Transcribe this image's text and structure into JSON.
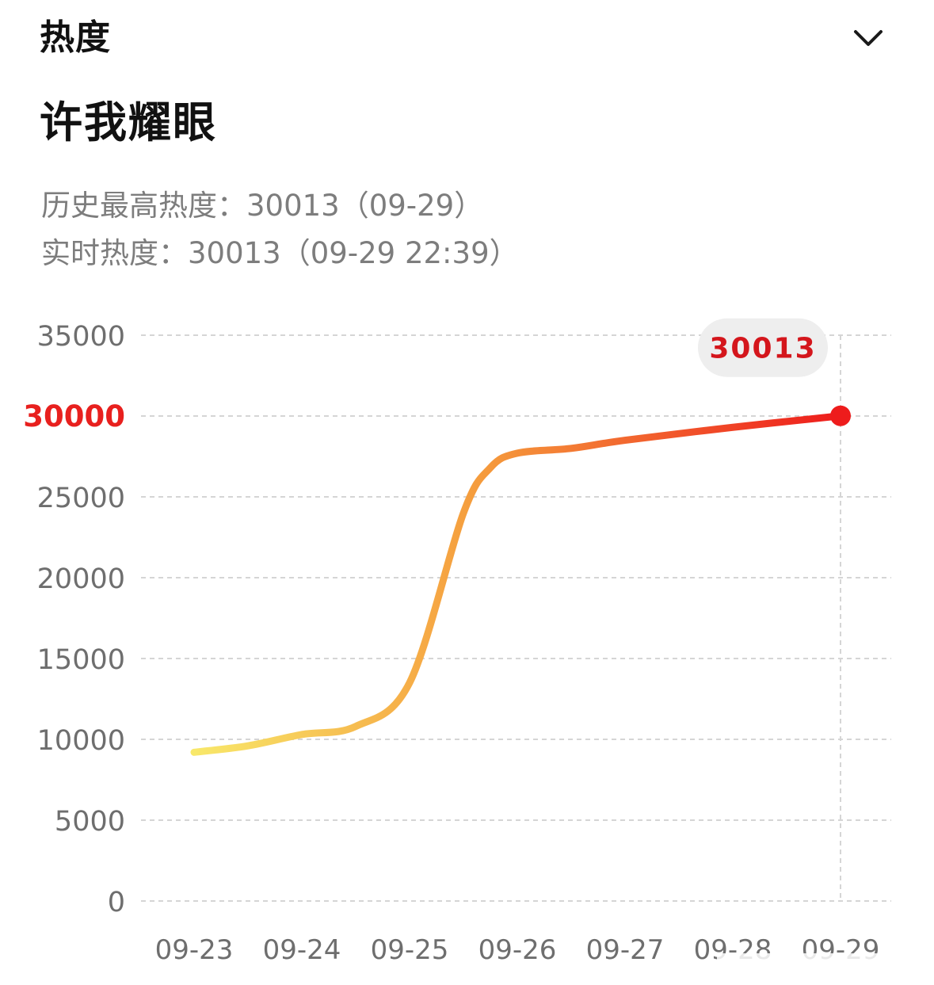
{
  "header": {
    "title": "热度",
    "collapse_icon": "chevron-down-icon"
  },
  "topic": {
    "title": "许我耀眼"
  },
  "stats": {
    "peak_line": "历史最高热度：30013（09-29）",
    "live_line": "实时热度：30013（09-29 22:39）"
  },
  "colors": {
    "line_start": "#f8e86a",
    "line_mid": "#f59a3c",
    "line_end": "#ee1c1c",
    "highlight_tick": "#e8201e",
    "callout_text": "#d4161c",
    "callout_bg": "#eeeeee",
    "grid": "#d5d5d5",
    "axis_text": "#6e6e6e"
  },
  "chart_data": {
    "type": "line",
    "x": [
      "09-23",
      "09-23",
      "09-24",
      "09-24",
      "09-25",
      "09-25",
      "09-25",
      "09-26",
      "09-26",
      "09-27",
      "09-28",
      "09-29"
    ],
    "x_offsets_days": [
      0,
      0.5,
      1,
      1.5,
      2,
      2.5,
      2.75,
      3,
      3.5,
      4,
      5,
      6
    ],
    "y": [
      9200,
      9600,
      10300,
      10800,
      13500,
      24000,
      26800,
      27700,
      28000,
      28500,
      29300,
      30013
    ],
    "x_ticks": [
      "09-23",
      "09-24",
      "09-25",
      "09-26",
      "09-27",
      "09-28",
      "09-29"
    ],
    "y_ticks": [
      "0",
      "5000",
      "10000",
      "15000",
      "20000",
      "25000",
      "30000",
      "35000"
    ],
    "highlighted_y_tick": "30000",
    "ylim": [
      0,
      35000
    ],
    "last_value_label": "30013",
    "grid": "horizontal-dashed",
    "legend": "none"
  }
}
